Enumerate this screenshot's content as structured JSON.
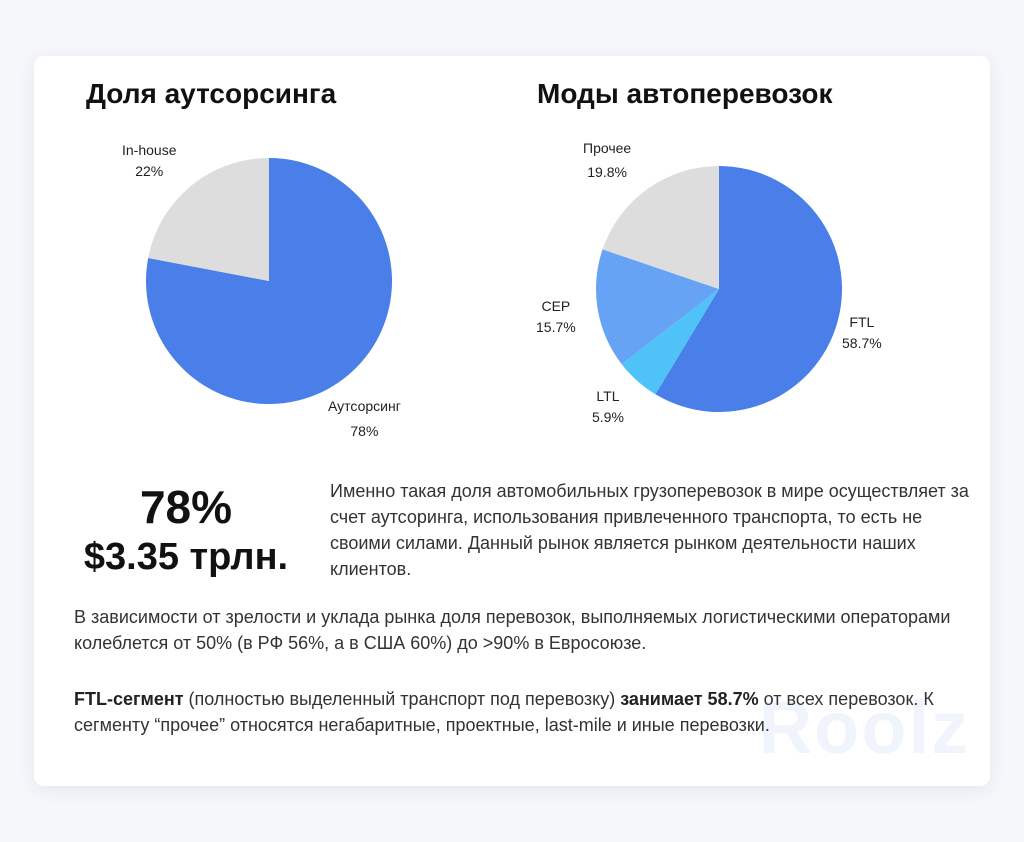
{
  "watermark": "Roolz",
  "colors": {
    "blue": "#4a7ee8",
    "light_blue": "#66a3f4",
    "cyan": "#4fc3f7",
    "gray": "#dddddd"
  },
  "chart_data": [
    {
      "type": "pie",
      "title": "Доля аутсорсинга",
      "slices": [
        {
          "label": "Аутсорсинг",
          "value": 78,
          "display": "78%",
          "color": "#4a7ee8"
        },
        {
          "label": "In-house",
          "value": 22,
          "display": "22%",
          "color": "#dddddd"
        }
      ],
      "start": "12 o'clock",
      "direction": "clockwise"
    },
    {
      "type": "pie",
      "title": "Моды автоперевозок",
      "slices": [
        {
          "label": "FTL",
          "value": 58.7,
          "display": "58.7%",
          "color": "#4a7ee8"
        },
        {
          "label": "LTL",
          "value": 5.9,
          "display": "5.9%",
          "color": "#4fc3f7"
        },
        {
          "label": "CEP",
          "value": 15.7,
          "display": "15.7%",
          "color": "#66a3f4"
        },
        {
          "label": "Прочее",
          "value": 19.8,
          "display": "19.8%",
          "color": "#dddddd"
        }
      ],
      "start": "12 o'clock",
      "direction": "clockwise"
    }
  ],
  "highlights": {
    "percent": "78%",
    "market": "$3.35 трлн."
  },
  "description": "Именно такая доля автомобильных грузоперевозок в мире осуществляет за счет аутсоринга, использования привлеченного транспорта, то есть не своими силами. Данный рынок является рынком деятельности наших клиентов.",
  "paragraph1": "В зависимости от зрелости и уклада рынка доля перевозок, выполняемых логистическими операторами колеблется от 50% (в РФ 56%, а в США 60%) до >90% в Евросоюзе.",
  "paragraph2": {
    "bold_start": "FTL-сегмент",
    "text1": " (полностью выделенный транспорт под перевозку) ",
    "bold_mid": "занимает 58.7%",
    "text2": " от всех перевозок. К сегменту “прочее” относятся негабаритные, проектные, last-mile и иные перевозки."
  }
}
